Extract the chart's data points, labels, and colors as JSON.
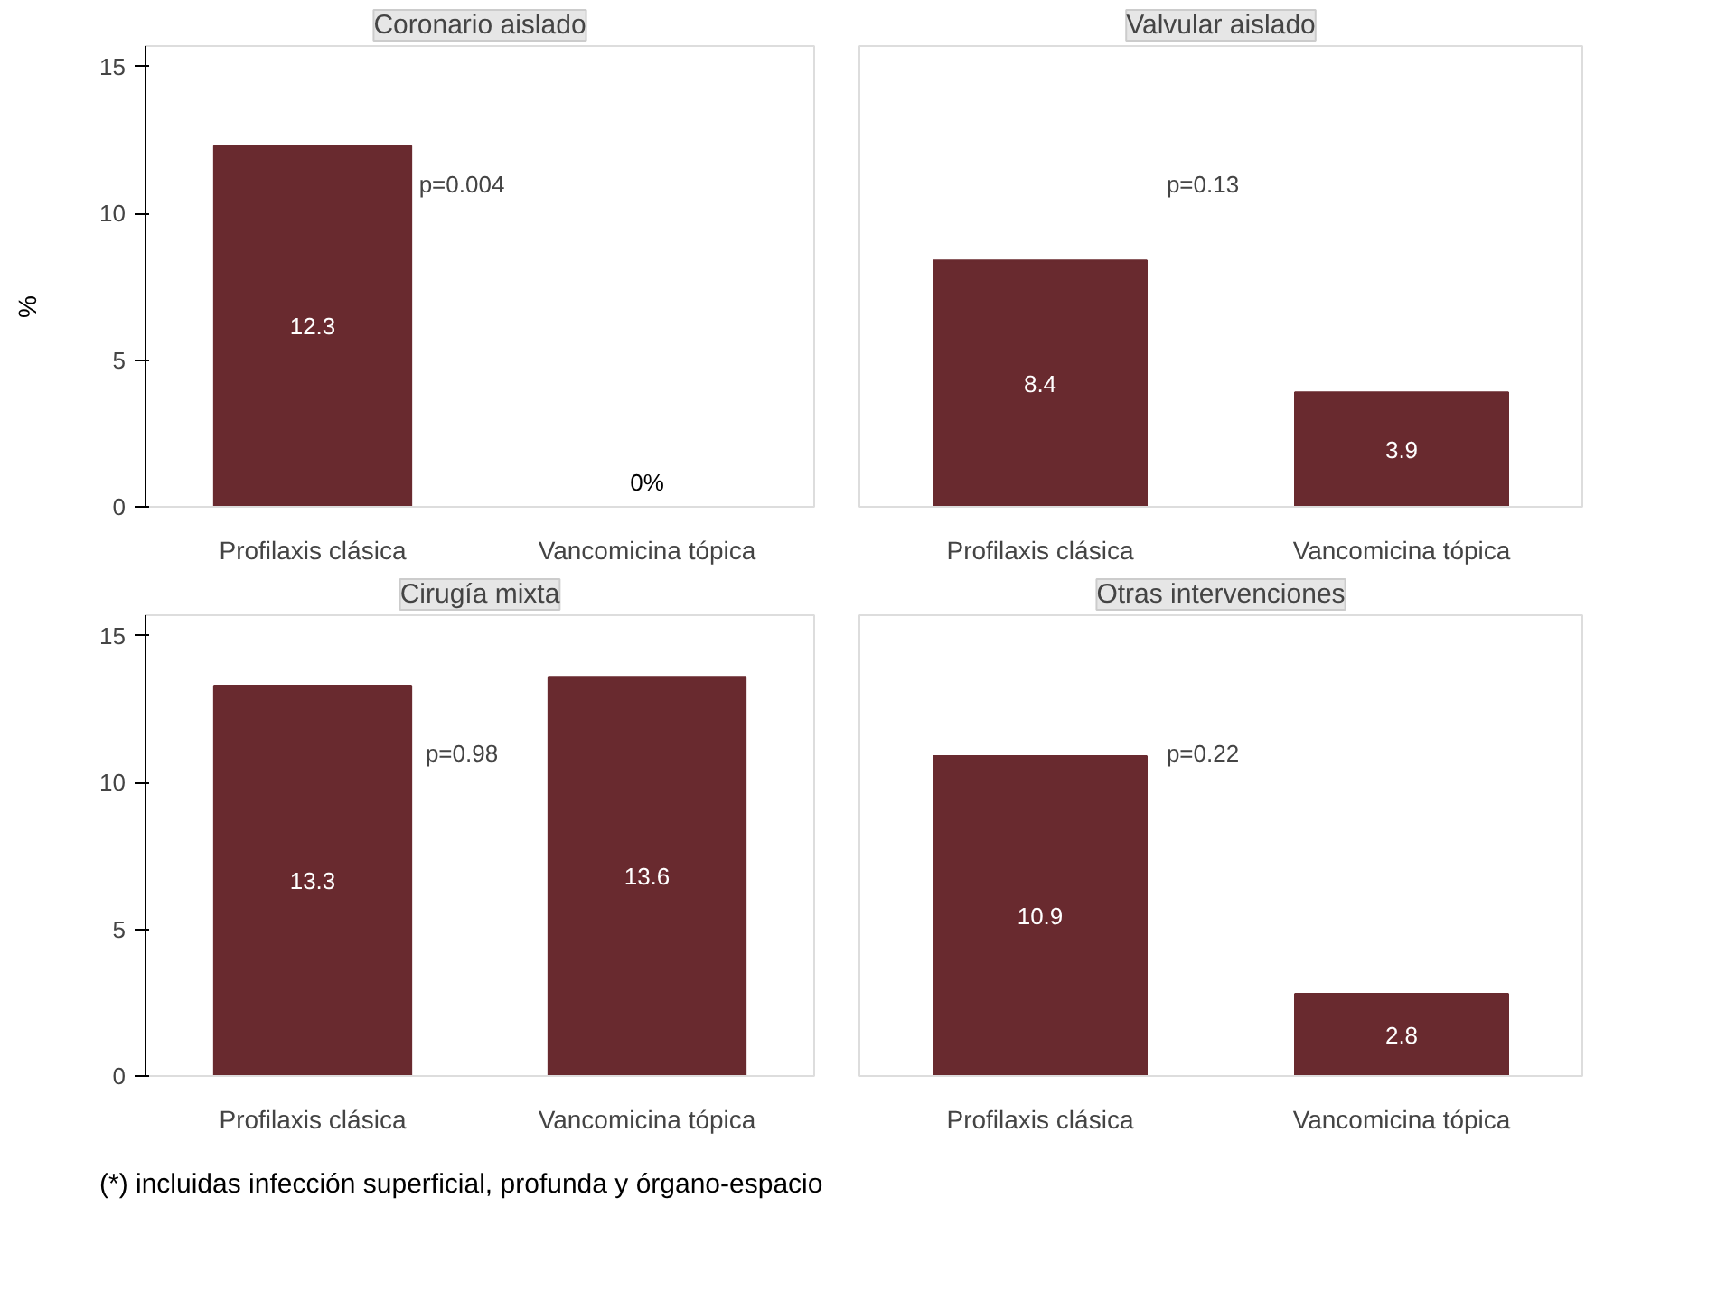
{
  "chart_data": [
    {
      "type": "bar",
      "title": "Coronario aislado",
      "ylabel": "%",
      "categories": [
        "Profilaxis clásica",
        "Vancomicina tópica"
      ],
      "values": [
        12.3,
        0
      ],
      "value_labels": [
        "12.3",
        "0%"
      ],
      "color": "#692a2f",
      "ylim": [
        0,
        15.7
      ],
      "yticks": [
        0,
        5,
        10,
        15
      ],
      "grid": false,
      "annotations": [
        "p=0.004"
      ]
    },
    {
      "type": "bar",
      "title": "Valvular aislado",
      "categories": [
        "Profilaxis clásica",
        "Vancomicina tópica"
      ],
      "values": [
        8.4,
        3.9
      ],
      "data_labels": true,
      "color": "#692a2f",
      "ylim": [
        0,
        15.7
      ],
      "tick_labels": "x",
      "grid": false,
      "annotations": [
        "p=0.13"
      ]
    },
    {
      "type": "bar",
      "title": "Cirugía mixta",
      "categories": [
        "Profilaxis clásica",
        "Vancomicina tópica"
      ],
      "values": [
        13.3,
        13.6
      ],
      "data_labels": true,
      "color": "#692a2f",
      "ylim": [
        0,
        15.7
      ],
      "yticks": [
        0,
        5,
        10,
        15
      ],
      "grid": false,
      "annotations": [
        "p=0.98"
      ]
    },
    {
      "type": "bar",
      "title": "Otras intervenciones",
      "categories": [
        "Profilaxis clásica",
        "Vancomicina tópica"
      ],
      "values": [
        10.9,
        2.8
      ],
      "data_labels": true,
      "color": "#692a2f",
      "ylim": [
        0,
        15.7
      ],
      "tick_labels": "x",
      "grid": false,
      "annotations": [
        "p=0.22",
        "(*) incluidas infección superficial, profunda y órgano-espacio"
      ]
    }
  ]
}
